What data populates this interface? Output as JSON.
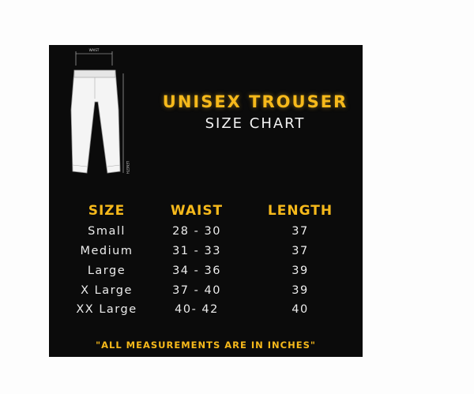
{
  "illustration": {
    "waist_label": "WAIST",
    "length_label": "LENGTH"
  },
  "title": "UNISEX TROUSER",
  "subtitle": "SIZE CHART",
  "columns": [
    "SIZE",
    "WAIST",
    "LENGTH"
  ],
  "rows": [
    [
      "Small",
      "28 - 30",
      "37"
    ],
    [
      "Medium",
      "31 - 33",
      "37"
    ],
    [
      "Large",
      "34 - 36",
      "39"
    ],
    [
      "X Large",
      "37 - 40",
      "39"
    ],
    [
      "XX Large",
      "40- 42",
      "40"
    ]
  ],
  "footer": "\"ALL MEASUREMENTS ARE IN INCHES\"",
  "colors": {
    "accent": "#f6b91b",
    "background": "#0b0b0b",
    "text": "#ececec"
  }
}
